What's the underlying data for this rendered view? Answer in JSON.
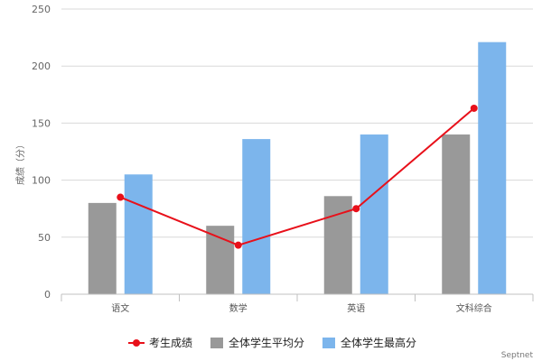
{
  "chart_data": {
    "type": "bar",
    "categories": [
      "语文",
      "数学",
      "英语",
      "文科综合"
    ],
    "ylabel": "成绩（分）",
    "ylim": [
      0,
      250
    ],
    "yticks": [
      0,
      50,
      100,
      150,
      200,
      250
    ],
    "grid": true,
    "legend_position": "bottom",
    "series": [
      {
        "name": "全体学生平均分",
        "type": "bar",
        "color": "#999999",
        "values": [
          80,
          60,
          86,
          140
        ]
      },
      {
        "name": "全体学生最高分",
        "type": "bar",
        "color": "#7cb5ec",
        "values": [
          105,
          136,
          140,
          221
        ]
      },
      {
        "name": "考生成绩",
        "type": "line",
        "color": "#e8101a",
        "values": [
          85,
          43,
          75,
          163
        ]
      }
    ],
    "credit": "Septnet"
  }
}
